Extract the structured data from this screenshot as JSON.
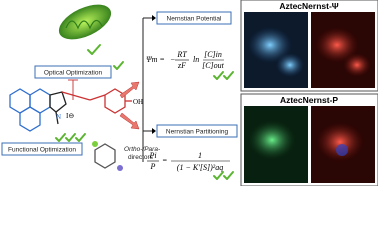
{
  "left": {
    "optical": "Optical Optimization",
    "functional": "Functional Optimization",
    "directors": [
      "Ortho-/Para-",
      "directors"
    ],
    "molecule": {
      "oh": "OH",
      "n": "N",
      "counterion": "I⊖"
    }
  },
  "middle": {
    "potential": {
      "label": "Nernstian Potential",
      "lhs": "Ψm =",
      "sign": "−",
      "num": "RT",
      "den": "zF",
      "ln": "ln",
      "cnum": "[C]in",
      "cden": "[C]out"
    },
    "partitioning": {
      "label": "Nernstian Partitioning",
      "lhs_num": "Pi",
      "lhs_den": "P",
      "eq": "=",
      "num": "1",
      "den": "(1 − K'[S])²aq"
    }
  },
  "right": {
    "top_title": "AztecNernst-Ψ",
    "bottom_title": "AztecNernst-P"
  }
}
